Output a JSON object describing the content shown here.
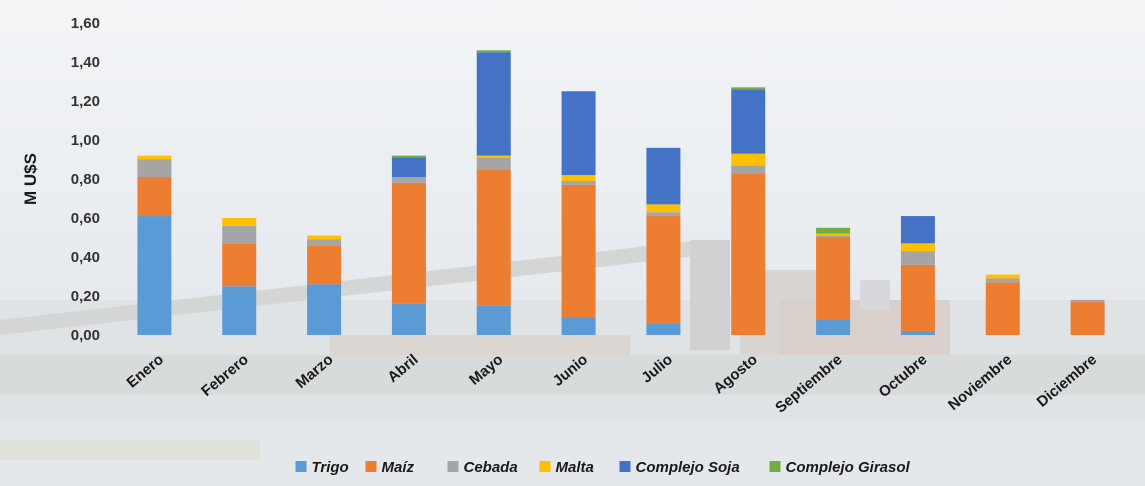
{
  "chart_data": {
    "type": "bar",
    "stacked": true,
    "ylabel": "M U$S",
    "ylim": [
      0,
      1.6
    ],
    "yticks": [
      0,
      0.2,
      0.4,
      0.6,
      0.8,
      1.0,
      1.2,
      1.4,
      1.6
    ],
    "ytick_labels": [
      "0,00",
      "0,20",
      "0,40",
      "0,60",
      "0,80",
      "1,00",
      "1,20",
      "1,40",
      "1,60"
    ],
    "categories": [
      "Enero",
      "Febrero",
      "Marzo",
      "Abril",
      "Mayo",
      "Junio",
      "Julio",
      "Agosto",
      "Septiembre",
      "Octubre",
      "Noviembre",
      "Diciembre"
    ],
    "legend_position": "bottom",
    "grid": false,
    "series": [
      {
        "name": "Trigo",
        "color": "#5b9bd5",
        "values": [
          0.61,
          0.25,
          0.26,
          0.16,
          0.15,
          0.09,
          0.06,
          0.0,
          0.08,
          0.02,
          0.0,
          0.0
        ]
      },
      {
        "name": "Maíz",
        "color": "#ed7d31",
        "values": [
          0.2,
          0.22,
          0.2,
          0.62,
          0.7,
          0.68,
          0.55,
          0.83,
          0.42,
          0.34,
          0.27,
          0.17
        ]
      },
      {
        "name": "Cebada",
        "color": "#a5a5a5",
        "values": [
          0.09,
          0.09,
          0.03,
          0.03,
          0.06,
          0.02,
          0.02,
          0.04,
          0.01,
          0.07,
          0.02,
          0.01
        ]
      },
      {
        "name": "Malta",
        "color": "#ffc000",
        "values": [
          0.02,
          0.04,
          0.02,
          0.0,
          0.01,
          0.03,
          0.04,
          0.06,
          0.01,
          0.04,
          0.02,
          0.0
        ]
      },
      {
        "name": "Complejo Soja",
        "color": "#4472c4",
        "values": [
          0.0,
          0.0,
          0.0,
          0.1,
          0.53,
          0.43,
          0.29,
          0.33,
          0.0,
          0.14,
          0.0,
          0.0
        ]
      },
      {
        "name": "Complejo Girasol",
        "color": "#70ad47",
        "values": [
          0.0,
          0.0,
          0.0,
          0.01,
          0.01,
          0.0,
          0.0,
          0.01,
          0.03,
          0.0,
          0.0,
          0.0
        ]
      }
    ]
  }
}
